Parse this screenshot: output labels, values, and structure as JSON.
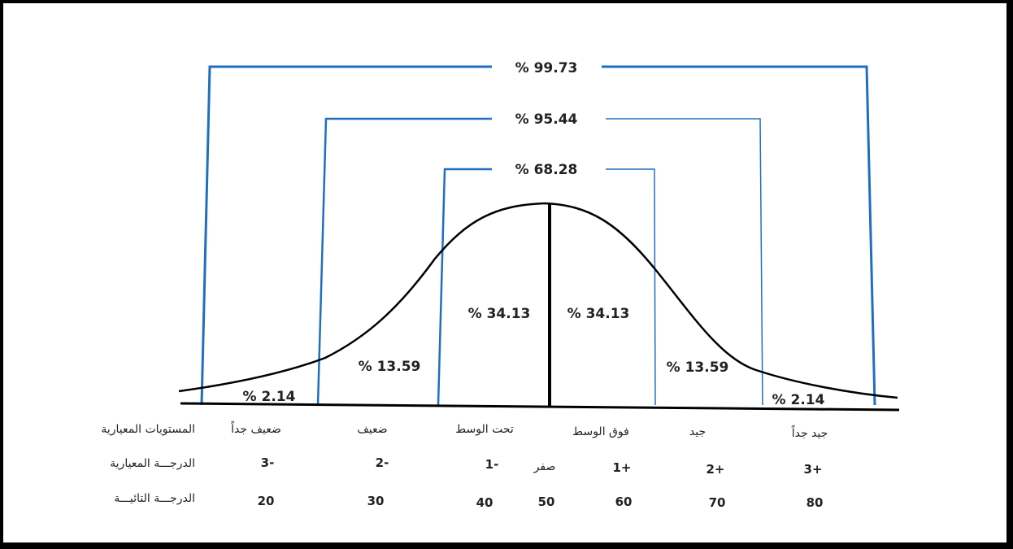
{
  "colors": {
    "bracket": "#1f6fbf",
    "curve": "#000000",
    "text": "#222222",
    "frame": "#000000"
  },
  "brackets": {
    "outer": "% 99.73",
    "middle": "% 95.44",
    "inner": "% 68.28"
  },
  "areas": {
    "center_left": "% 34.13",
    "center_right": "% 34.13",
    "mid_left": "% 13.59",
    "mid_right": "% 13.59",
    "tail_left": "% 2.14",
    "tail_right": "% 2.14"
  },
  "rows": {
    "levels": {
      "label": "المستويات المعيارية",
      "values": [
        "ضعيف جداً",
        "ضعيف",
        "تحت الوسط",
        "فوق الوسط",
        "جيد",
        "جيد جداً"
      ]
    },
    "z_scores": {
      "label": "الدرجـــة المعيارية",
      "values": [
        "3-",
        "2-",
        "1-",
        "صفر",
        "1+",
        "2+",
        "3+"
      ]
    },
    "t_scores": {
      "label": "الدرجـــة التائيـــة",
      "values": [
        "20",
        "30",
        "40",
        "50",
        "60",
        "70",
        "80"
      ]
    }
  }
}
